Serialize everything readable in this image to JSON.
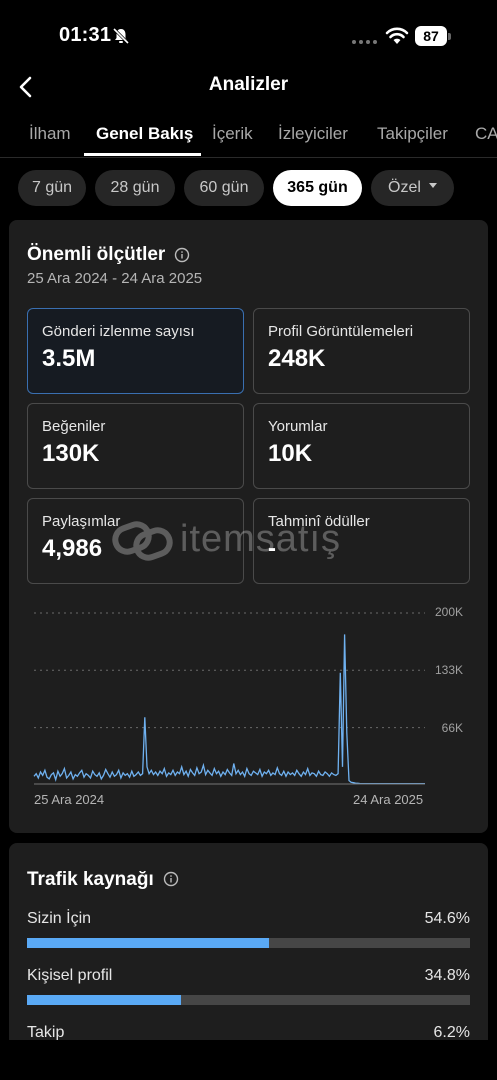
{
  "status": {
    "time": "01:31",
    "battery": "87"
  },
  "header": {
    "title": "Analizler"
  },
  "tabs": [
    {
      "label": "İlham"
    },
    {
      "label": "Genel Bakış"
    },
    {
      "label": "İçerik"
    },
    {
      "label": "İzleyiciler"
    },
    {
      "label": "Takipçiler"
    },
    {
      "label": "CA"
    }
  ],
  "filters": [
    {
      "label": "7 gün"
    },
    {
      "label": "28 gün"
    },
    {
      "label": "60 gün"
    },
    {
      "label": "365 gün",
      "active": true
    },
    {
      "label": "Özel"
    }
  ],
  "key_metrics": {
    "title": "Önemli ölçütler",
    "date_range": "25 Ara 2024 - 24 Ara 2025",
    "items": [
      {
        "label": "Gönderi izlenme sayısı",
        "value": "3.5M",
        "selected": true
      },
      {
        "label": "Profil Görüntülemeleri",
        "value": "248K"
      },
      {
        "label": "Beğeniler",
        "value": "130K"
      },
      {
        "label": "Yorumlar",
        "value": "10K"
      },
      {
        "label": "Paylaşımlar",
        "value": "4,986"
      },
      {
        "label": "Tahminî ödüller",
        "value": "-"
      }
    ]
  },
  "chart_data": {
    "type": "line",
    "title": "",
    "xlabel": "",
    "ylabel": "",
    "x_start": "25 Ara 2024",
    "x_end": "24 Ara 2025",
    "y_ticks": [
      "200K",
      "133K",
      "66K"
    ],
    "ylim": [
      0,
      200000
    ],
    "grid": true,
    "color": "#6fb1f0",
    "series": [
      {
        "values": [
          9000,
          12000,
          7000,
          14000,
          10000,
          16000,
          8000,
          6000,
          11000,
          13000,
          5000,
          15000,
          9000,
          12000,
          18000,
          7000,
          10000,
          14000,
          6000,
          11000,
          9000,
          13000,
          16000,
          8000,
          12000,
          10000,
          7000,
          15000,
          11000,
          9000,
          13000,
          6000,
          10000,
          17000,
          12000,
          8000,
          14000,
          9000,
          11000,
          16000,
          7000,
          13000,
          10000,
          12000,
          8000,
          15000,
          9000,
          11000,
          14000,
          10000,
          12000,
          78000,
          20000,
          12000,
          16000,
          11000,
          14000,
          10000,
          15000,
          12000,
          18000,
          9000,
          13000,
          11000,
          16000,
          10000,
          14000,
          12000,
          20000,
          11000,
          15000,
          9000,
          17000,
          13000,
          10000,
          19000,
          12000,
          14000,
          22000,
          11000,
          16000,
          13000,
          10000,
          18000,
          12000,
          15000,
          9000,
          14000,
          11000,
          17000,
          13000,
          10000,
          24000,
          12000,
          16000,
          11000,
          14000,
          9000,
          18000,
          12000,
          10000,
          15000,
          13000,
          11000,
          17000,
          9000,
          14000,
          12000,
          16000,
          10000,
          13000,
          11000,
          19000,
          12000,
          10000,
          15000,
          9000,
          14000,
          11000,
          13000,
          10000,
          16000,
          12000,
          9000,
          14000,
          11000,
          18000,
          10000,
          13000,
          12000,
          9000,
          15000,
          11000,
          10000,
          14000,
          12000,
          9000,
          13000,
          11000,
          10000,
          12000,
          130000,
          20000,
          175000,
          60000,
          4000,
          2000,
          1500,
          1000,
          800,
          600,
          500,
          400,
          300,
          300,
          300,
          300,
          300,
          300,
          300,
          300,
          300,
          300,
          300,
          300,
          300,
          300,
          300,
          300,
          300,
          300,
          300,
          300,
          300,
          300,
          300,
          300,
          300,
          300,
          300,
          300
        ]
      }
    ]
  },
  "traffic": {
    "title": "Trafik kaynağı",
    "items": [
      {
        "label": "Sizin İçin",
        "pct": "54.6%",
        "fraction": 0.546
      },
      {
        "label": "Kişisel profil",
        "pct": "34.8%",
        "fraction": 0.348
      },
      {
        "label": "Takip",
        "pct": "6.2%",
        "fraction": 0.062
      }
    ]
  },
  "watermark": {
    "text": "itemsatış"
  }
}
